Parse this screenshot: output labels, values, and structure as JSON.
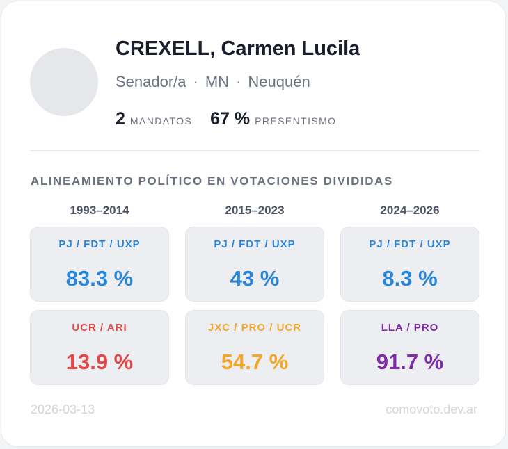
{
  "profile": {
    "name": "CREXELL, Carmen Lucila",
    "role": "Senador/a",
    "party": "MN",
    "province": "Neuquén",
    "separator": "·",
    "mandatos_value": "2",
    "mandatos_label": "MANDATOS",
    "presentismo_value": "67 %",
    "presentismo_label": "PRESENTISMO"
  },
  "alignment": {
    "title": "ALINEAMIENTO POLÍTICO EN VOTACIONES DIVIDIDAS",
    "periods": [
      {
        "label": "1993–2014",
        "blocks": [
          {
            "party": "PJ / FDT / UXP",
            "value": "83.3 %",
            "color": "#2a86d9"
          },
          {
            "party": "UCR / ARI",
            "value": "13.9 %",
            "color": "#e24848"
          }
        ]
      },
      {
        "label": "2015–2023",
        "blocks": [
          {
            "party": "PJ / FDT / UXP",
            "value": "43 %",
            "color": "#2a86d9"
          },
          {
            "party": "JXC / PRO / UCR",
            "value": "54.7 %",
            "color": "#f2a72b"
          }
        ]
      },
      {
        "label": "2024–2026",
        "blocks": [
          {
            "party": "PJ / FDT / UXP",
            "value": "8.3 %",
            "color": "#2a86d9"
          },
          {
            "party": "LLA / PRO",
            "value": "91.7 %",
            "color": "#7e2ba8"
          }
        ]
      }
    ]
  },
  "footer": {
    "date": "2026-03-13",
    "site": "comovoto.dev.ar"
  }
}
